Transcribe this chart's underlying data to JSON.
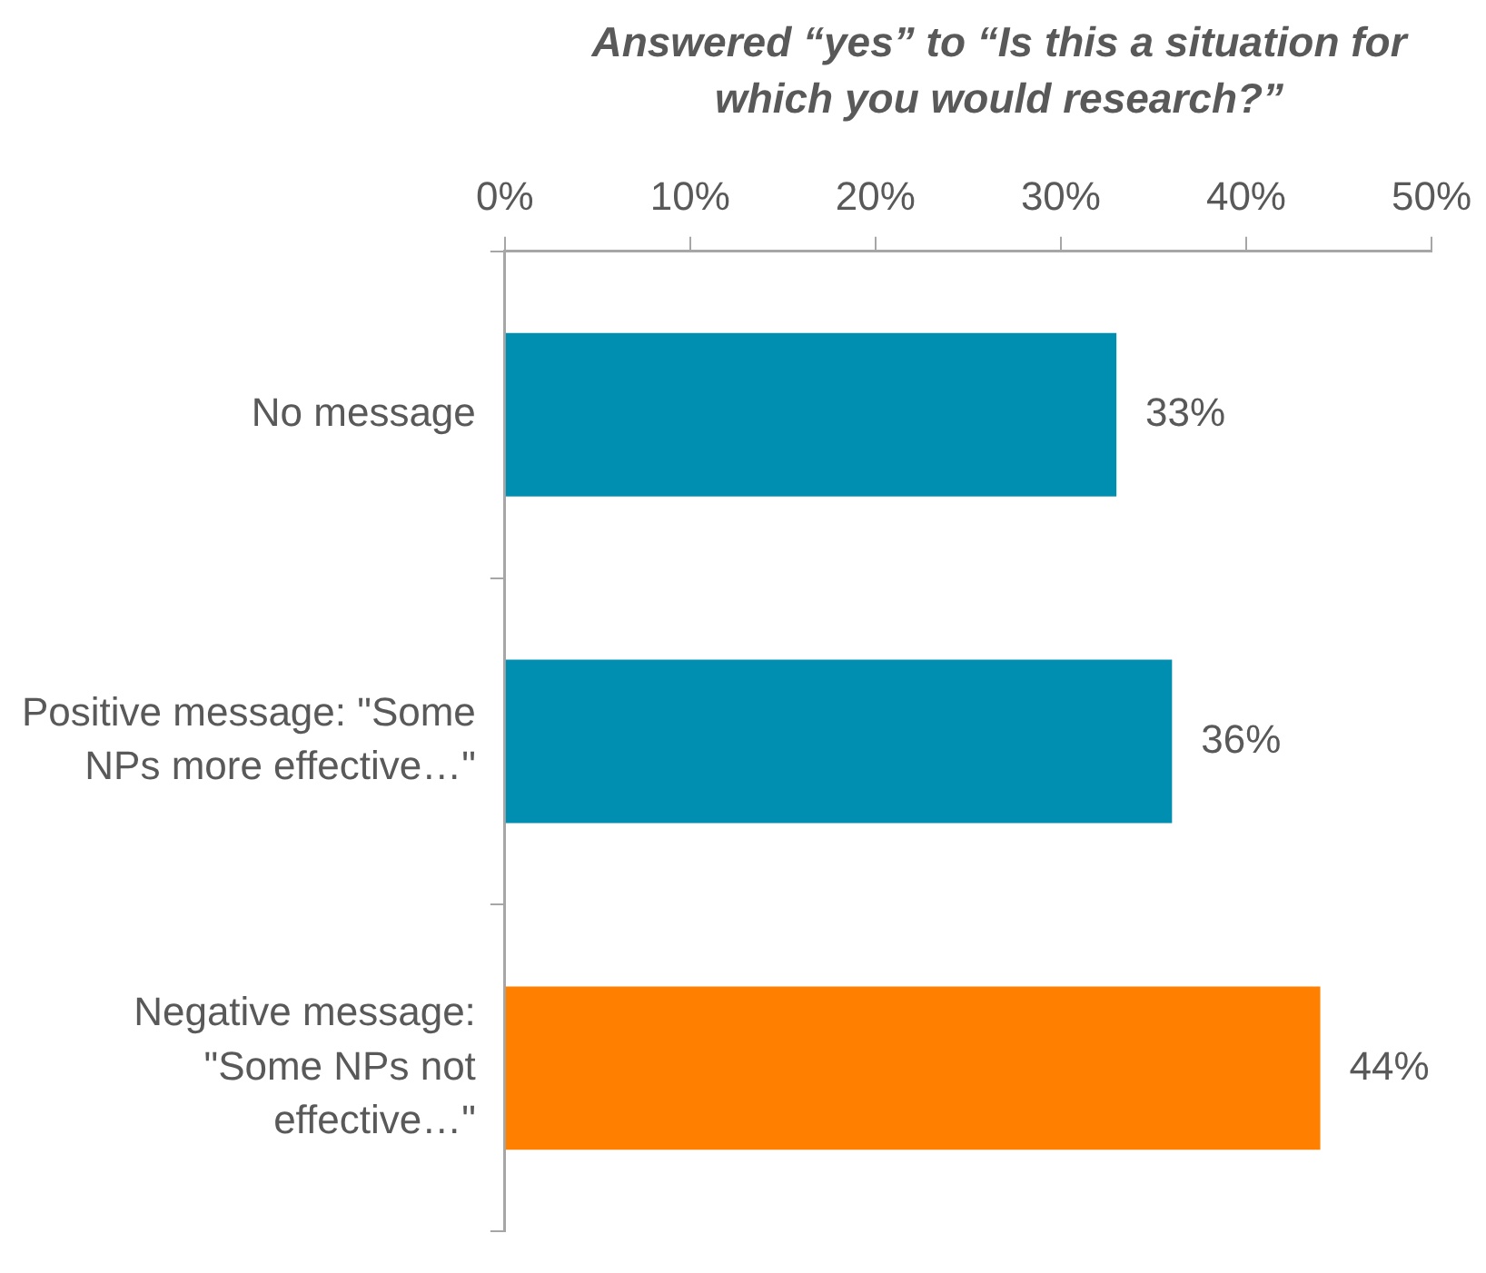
{
  "chart_data": {
    "type": "bar",
    "orientation": "horizontal",
    "title": "Answered “yes” to “Is this a situation for which you would research?”",
    "categories": [
      "No message",
      "Positive message: \"Some NPs more effective…\"",
      "Negative message: \"Some NPs not effective…\""
    ],
    "values": [
      33,
      36,
      44
    ],
    "colors": [
      "#008fb0",
      "#008fb0",
      "#ff7f00"
    ],
    "value_labels": [
      "33%",
      "36%",
      "44%"
    ],
    "xlim": [
      0,
      50
    ],
    "xticks": [
      {
        "value": 0,
        "label": "0%"
      },
      {
        "value": 10,
        "label": "10%"
      },
      {
        "value": 20,
        "label": "20%"
      },
      {
        "value": 30,
        "label": "30%"
      },
      {
        "value": 40,
        "label": "40%"
      },
      {
        "value": 50,
        "label": "50%"
      }
    ],
    "grid": false,
    "legend": false
  }
}
